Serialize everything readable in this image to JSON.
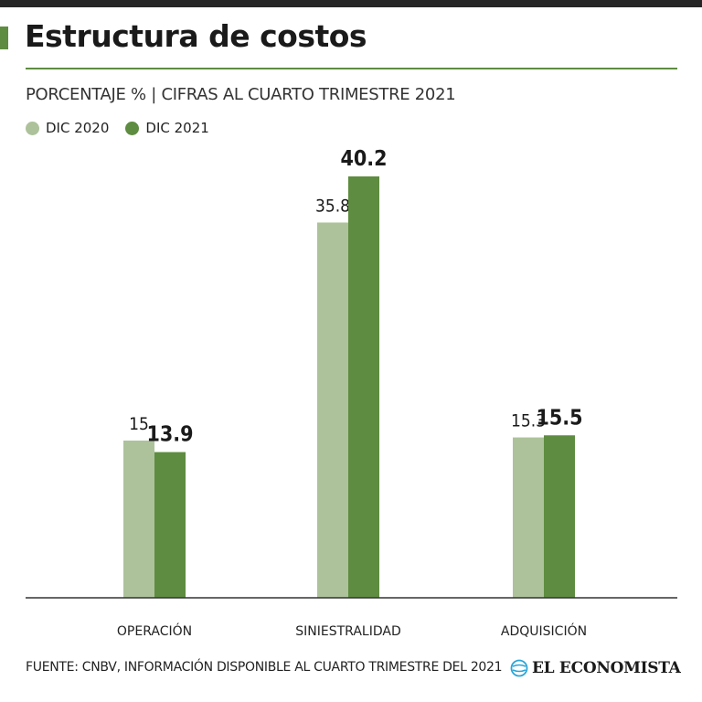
{
  "header": {
    "title": "Estructura de costos",
    "subtitle": "PORCENTAJE % | CIFRAS AL CUARTO TRIMESTRE 2021"
  },
  "colors": {
    "accent": "#5e8c40",
    "series_2020": "#adc29b",
    "series_2021": "#5e8c40"
  },
  "chart_data": {
    "type": "bar",
    "title": "Estructura de costos",
    "subtitle": "PORCENTAJE % | CIFRAS AL CUARTO TRIMESTRE 2021",
    "categories": [
      "OPERACIÓN",
      "SINIESTRALIDAD",
      "ADQUISICIÓN"
    ],
    "series": [
      {
        "name": "DIC 2020",
        "values": [
          15,
          35.8,
          15.3
        ],
        "labels": [
          "15",
          "35.8",
          "15.3"
        ]
      },
      {
        "name": "DIC 2021",
        "values": [
          13.9,
          40.2,
          15.5
        ],
        "labels": [
          "13.9",
          "40.2",
          "15.5"
        ]
      }
    ],
    "xlabel": "",
    "ylabel": "",
    "ylim": [
      0,
      40.2
    ],
    "grid": false,
    "legend_position": "top-left"
  },
  "footer": {
    "source": "FUENTE: CNBV, INFORMACIÓN DISPONIBLE AL CUARTO TRIMESTRE DEL 2021",
    "logo_text": "EL ECONOMISTA"
  }
}
